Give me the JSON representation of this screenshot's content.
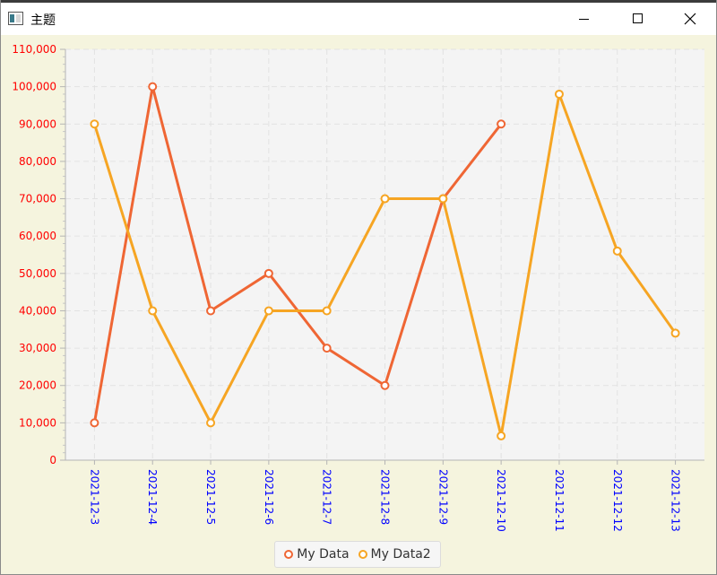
{
  "window": {
    "title": "主题",
    "minimize_icon": "minimize-icon",
    "maximize_icon": "maximize-icon",
    "close_icon": "close-icon"
  },
  "colors": {
    "series1": "#ef6634",
    "series2": "#f6a523",
    "plot_bg": "#f4f4f4",
    "window_bg": "#f5f4de",
    "y_tick_color": "#ff0000",
    "x_tick_color": "#0000ff",
    "grid": "#e2e2e2"
  },
  "chart_data": {
    "type": "line",
    "title": "",
    "xlabel": "",
    "ylabel": "",
    "categories": [
      "2021-12-3",
      "2021-12-4",
      "2021-12-5",
      "2021-12-6",
      "2021-12-7",
      "2021-12-8",
      "2021-12-9",
      "2021-12-10",
      "2021-12-11",
      "2021-12-12",
      "2021-12-13"
    ],
    "series": [
      {
        "name": "My Data",
        "values": [
          10000,
          100000,
          40000,
          50000,
          30000,
          20000,
          70000,
          90000,
          null,
          null,
          null
        ]
      },
      {
        "name": "My Data2",
        "values": [
          90000,
          40000,
          10000,
          40000,
          40000,
          70000,
          70000,
          6500,
          98000,
          56000,
          34000
        ]
      }
    ],
    "ylim": [
      0,
      110000
    ],
    "y_ticks": [
      "0",
      "10,000",
      "20,000",
      "30,000",
      "40,000",
      "50,000",
      "60,000",
      "70,000",
      "80,000",
      "90,000",
      "100,000",
      "110,000"
    ],
    "grid": true,
    "legend": "bottom-center"
  }
}
